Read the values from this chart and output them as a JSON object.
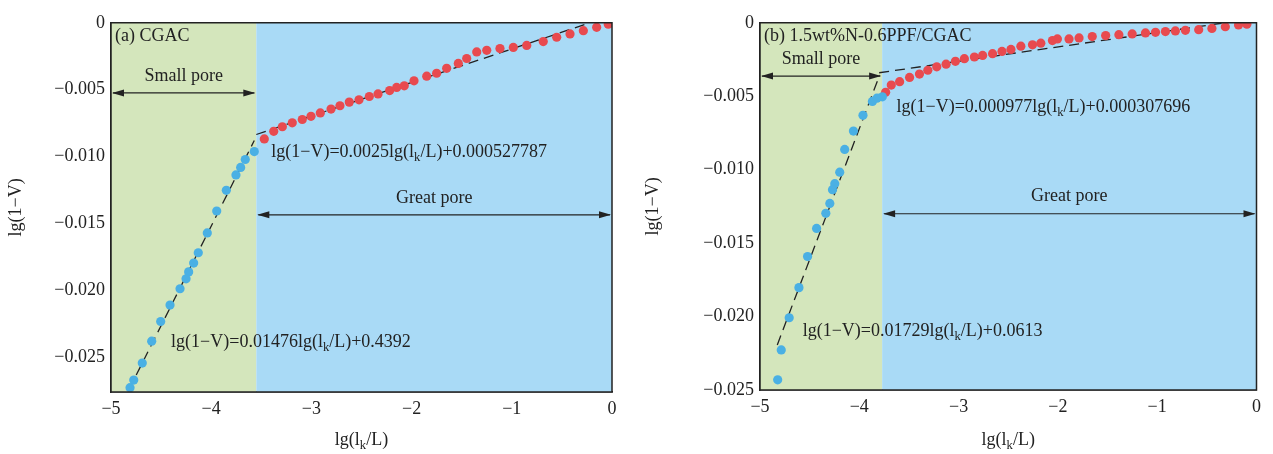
{
  "chart_data": [
    {
      "type": "scatter",
      "title": "(a) CGAC",
      "xlabel": "lg(l$_{k}$/L)",
      "ylabel": "lg(1−V)",
      "xlim": [
        -5,
        0
      ],
      "ylim": [
        -0.0276,
        0
      ],
      "xticks": [
        {
          "value": -5,
          "label": "−5"
        },
        {
          "value": -4,
          "label": "−4"
        },
        {
          "value": -3,
          "label": "−3"
        },
        {
          "value": -2,
          "label": "−2"
        },
        {
          "value": -1,
          "label": "−1"
        },
        0
      ],
      "yticks": [
        0,
        {
          "value": -0.005,
          "label": "−0.005"
        },
        {
          "value": -0.01,
          "label": "−0.010"
        },
        {
          "value": -0.015,
          "label": "−0.015"
        },
        {
          "value": -0.02,
          "label": "−0.020"
        },
        {
          "value": -0.025,
          "label": "−0.025"
        }
      ],
      "grid": false,
      "legend": false,
      "marker": "circle",
      "bands": [
        {
          "axis": "x",
          "from": -5,
          "to": -3.55,
          "label": "Small pore",
          "color": "#d4e6bc"
        },
        {
          "axis": "x",
          "from": -3.55,
          "to": 0,
          "label": "Great pore",
          "color": "#a9daf6"
        }
      ],
      "annotations": [
        "lg(1−V)=0.0025lg(l$_{k}$/L)+0.000527787",
        "lg(1−V)=0.01476lg(l$_{k}$/L)+0.4392"
      ],
      "series": [
        {
          "type": "scatter",
          "color": "#4ab0e4",
          "x": [
            -3.57,
            -3.66,
            -3.706,
            -3.753,
            -3.849,
            -3.945,
            -4.039,
            -4.129,
            -4.175,
            -4.225,
            -4.251,
            -4.311,
            -4.411,
            -4.504,
            -4.594,
            -4.688,
            -4.773,
            -4.81
          ],
          "values": [
            -0.00963,
            -0.01022,
            -0.01081,
            -0.01137,
            -0.01252,
            -0.01407,
            -0.01571,
            -0.01719,
            -0.01796,
            -0.01862,
            -0.01914,
            -0.01988,
            -0.0211,
            -0.02233,
            -0.0238,
            -0.02544,
            -0.02671,
            -0.02728
          ]
        },
        {
          "type": "scatter",
          "color": "#e84a4f",
          "x": [
            -3.47,
            -3.376,
            -3.29,
            -3.191,
            -3.091,
            -3.004,
            -2.911,
            -2.804,
            -2.715,
            -2.622,
            -2.525,
            -2.422,
            -2.335,
            -2.219,
            -2.149,
            -2.073,
            -1.976,
            -1.849,
            -1.75,
            -1.65,
            -1.534,
            -1.45,
            -1.35,
            -1.25,
            -1.118,
            -0.985,
            -0.851,
            -0.686,
            -0.552,
            -0.419,
            -0.286,
            -0.153,
            -0.037
          ],
          "values": [
            -0.00868,
            -0.00811,
            -0.00777,
            -0.00748,
            -0.00723,
            -0.00699,
            -0.00674,
            -0.00645,
            -0.0062,
            -0.00593,
            -0.00576,
            -0.00551,
            -0.00532,
            -0.00507,
            -0.00483,
            -0.00471,
            -0.00434,
            -0.00399,
            -0.00377,
            -0.0034,
            -0.00304,
            -0.00267,
            -0.00218,
            -0.00206,
            -0.00193,
            -0.00184,
            -0.00169,
            -0.0014,
            -0.00108,
            -0.00083,
            -0.00059,
            -0.00034,
            -0.0001
          ]
        },
        {
          "type": "line",
          "color": "#222222",
          "line_style": "dashed",
          "marker": "none",
          "x": [
            -4.82,
            -3.57
          ],
          "values": [
            -0.0274,
            -0.0088
          ]
        },
        {
          "type": "line",
          "color": "#222222",
          "line_style": "dashed",
          "marker": "none",
          "x": [
            -3.55,
            -0.22
          ],
          "values": [
            -0.00835,
            0
          ]
        }
      ]
    },
    {
      "type": "scatter",
      "title": "(b) 1.5wt%N-0.6PPF/CGAC",
      "xlabel": "lg(l$_{k}$/L)",
      "ylabel": "lg(1−V)",
      "xlim": [
        -5,
        0
      ],
      "ylim": [
        -0.025,
        0
      ],
      "xticks": [
        {
          "value": -5,
          "label": "−5"
        },
        {
          "value": -4,
          "label": "−4"
        },
        {
          "value": -3,
          "label": "−3"
        },
        {
          "value": -2,
          "label": "−2"
        },
        {
          "value": -1,
          "label": "−1"
        },
        0
      ],
      "yticks": [
        0,
        {
          "value": -0.005,
          "label": "−0.005"
        },
        {
          "value": -0.01,
          "label": "−0.010"
        },
        {
          "value": -0.015,
          "label": "−0.015"
        },
        {
          "value": -0.02,
          "label": "−0.020"
        },
        {
          "value": -0.025,
          "label": "−0.025"
        }
      ],
      "grid": false,
      "legend": false,
      "marker": "circle",
      "bands": [
        {
          "axis": "x",
          "from": -5,
          "to": -3.77,
          "label": "Small pore",
          "color": "#d4e6bc"
        },
        {
          "axis": "x",
          "from": -3.77,
          "to": 0,
          "label": "Great pore",
          "color": "#a9daf6"
        }
      ],
      "annotations": [
        "lg(1−V)=0.000977lg(l$_{k}$/L)+0.000307696",
        "lg(1−V)=0.01729lg(l$_{k}$/L)+0.0613"
      ],
      "series": [
        {
          "type": "scatter",
          "color": "#4ab0e4",
          "x": [
            -3.768,
            -3.822,
            -3.868,
            -3.963,
            -4.059,
            -4.147,
            -4.197,
            -4.247,
            -4.27,
            -4.297,
            -4.337,
            -4.43,
            -4.521,
            -4.608,
            -4.706,
            -4.786,
            -4.822
          ],
          "values": [
            -0.00504,
            -0.00513,
            -0.00535,
            -0.0063,
            -0.00737,
            -0.00862,
            -0.01017,
            -0.01095,
            -0.01136,
            -0.0123,
            -0.01297,
            -0.014,
            -0.01591,
            -0.01803,
            -0.02008,
            -0.02227,
            -0.02431
          ]
        },
        {
          "type": "scatter",
          "color": "#e84a4f",
          "x": [
            -3.735,
            -3.678,
            -3.594,
            -3.494,
            -3.394,
            -3.31,
            -3.22,
            -3.126,
            -3.032,
            -2.942,
            -2.841,
            -2.758,
            -2.658,
            -2.563,
            -2.473,
            -2.373,
            -2.256,
            -2.172,
            -2.055,
            -2.005,
            -1.888,
            -1.787,
            -1.654,
            -1.519,
            -1.386,
            -1.252,
            -1.118,
            -1.017,
            -0.917,
            -0.817,
            -0.716,
            -0.582,
            -0.449,
            -0.314,
            -0.181,
            -0.097
          ],
          "values": [
            -0.00473,
            -0.00424,
            -0.00401,
            -0.00372,
            -0.00349,
            -0.00323,
            -0.003,
            -0.00282,
            -0.00262,
            -0.00244,
            -0.00233,
            -0.00222,
            -0.0021,
            -0.00195,
            -0.00181,
            -0.00159,
            -0.0015,
            -0.00139,
            -0.00121,
            -0.0011,
            -0.0011,
            -0.00103,
            -0.00094,
            -0.00087,
            -0.00081,
            -0.00076,
            -0.00069,
            -0.00065,
            -0.0006,
            -0.00055,
            -0.00051,
            -0.00047,
            -0.00038,
            -0.00027,
            -0.00015,
            -0.0001
          ]
        },
        {
          "type": "line",
          "color": "#222222",
          "line_style": "dashed",
          "marker": "none",
          "x": [
            -4.826,
            -3.795
          ],
          "values": [
            -0.02193,
            -0.00356
          ]
        },
        {
          "type": "line",
          "color": "#222222",
          "line_style": "dashed",
          "marker": "none",
          "x": [
            -3.8,
            -0.32
          ],
          "values": [
            -0.0034,
            0
          ]
        }
      ]
    }
  ]
}
